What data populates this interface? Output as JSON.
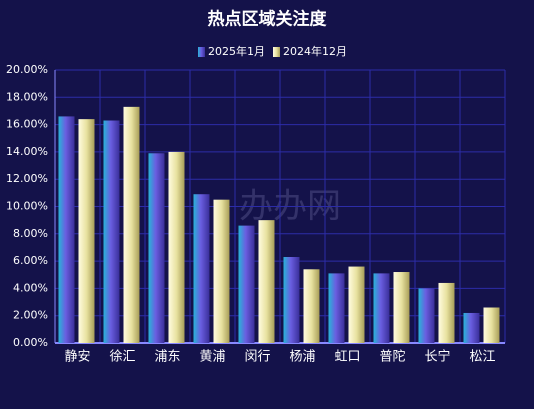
{
  "chart_data": {
    "type": "bar",
    "title": "热点区域关注度",
    "watermark": "办办网",
    "categories": [
      "静安",
      "徐汇",
      "浦东",
      "黄浦",
      "闵行",
      "杨浦",
      "虹口",
      "普陀",
      "长宁",
      "松江"
    ],
    "series": [
      {
        "name": "2025年1月",
        "color": "#6a5ee0",
        "values": [
          16.6,
          16.3,
          13.9,
          10.9,
          8.6,
          6.3,
          5.1,
          5.1,
          4.0,
          2.2
        ]
      },
      {
        "name": "2024年12月",
        "color": "#e8e2a0",
        "values": [
          16.4,
          17.3,
          14.0,
          10.5,
          9.0,
          5.4,
          5.6,
          5.2,
          4.4,
          2.6
        ]
      }
    ],
    "ylim": [
      0,
      20
    ],
    "yticks": [
      {
        "value": 0,
        "label": "0.00%"
      },
      {
        "value": 2,
        "label": "2.00%"
      },
      {
        "value": 4,
        "label": "4.00%"
      },
      {
        "value": 6,
        "label": "6.00%"
      },
      {
        "value": 8,
        "label": "8.00%"
      },
      {
        "value": 10,
        "label": "10.00%"
      },
      {
        "value": 12,
        "label": "12.00%"
      },
      {
        "value": 14,
        "label": "14.00%"
      },
      {
        "value": 16,
        "label": "16.00%"
      },
      {
        "value": 18,
        "label": "18.00%"
      },
      {
        "value": 20,
        "label": "20.00%"
      }
    ],
    "grid": true,
    "legend": "top"
  }
}
